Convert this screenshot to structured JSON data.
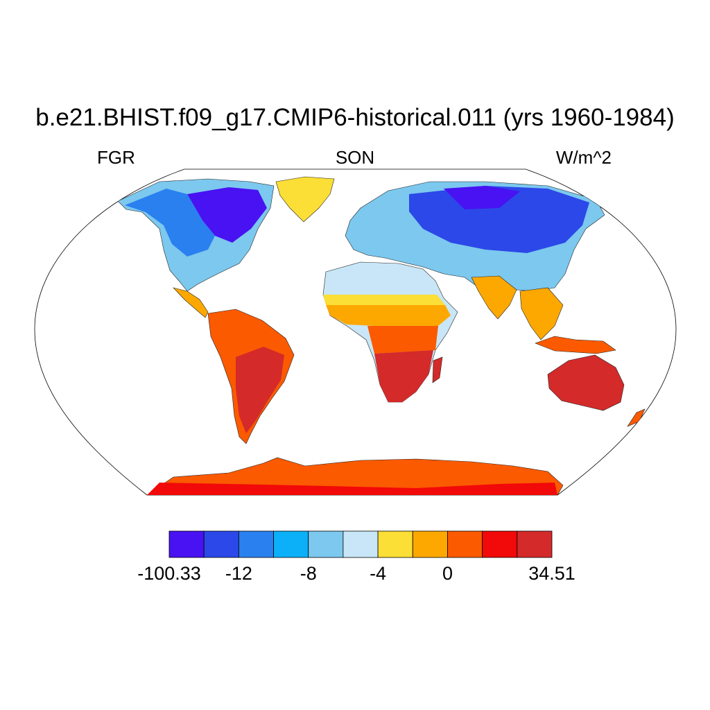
{
  "header": {
    "title": "b.e21.BHIST.f09_g17.CMIP6-historical.011 (yrs 1960-1984)",
    "variable": "FGR",
    "season": "SON",
    "units": "W/m^2"
  },
  "map": {
    "projection": "Robinson",
    "ocean_color": "#ffffff",
    "coastline_color": "#000000"
  },
  "colorbar": {
    "colors": [
      "#4812f2",
      "#2c48e8",
      "#2a80ee",
      "#0bb0f8",
      "#7cc8ee",
      "#c8e6f7",
      "#fbde36",
      "#fca800",
      "#fb5a00",
      "#f20909",
      "#d42a2a"
    ],
    "labels": [
      "-100.33",
      "-12",
      "-8",
      "-4",
      "0",
      "34.51"
    ]
  }
}
